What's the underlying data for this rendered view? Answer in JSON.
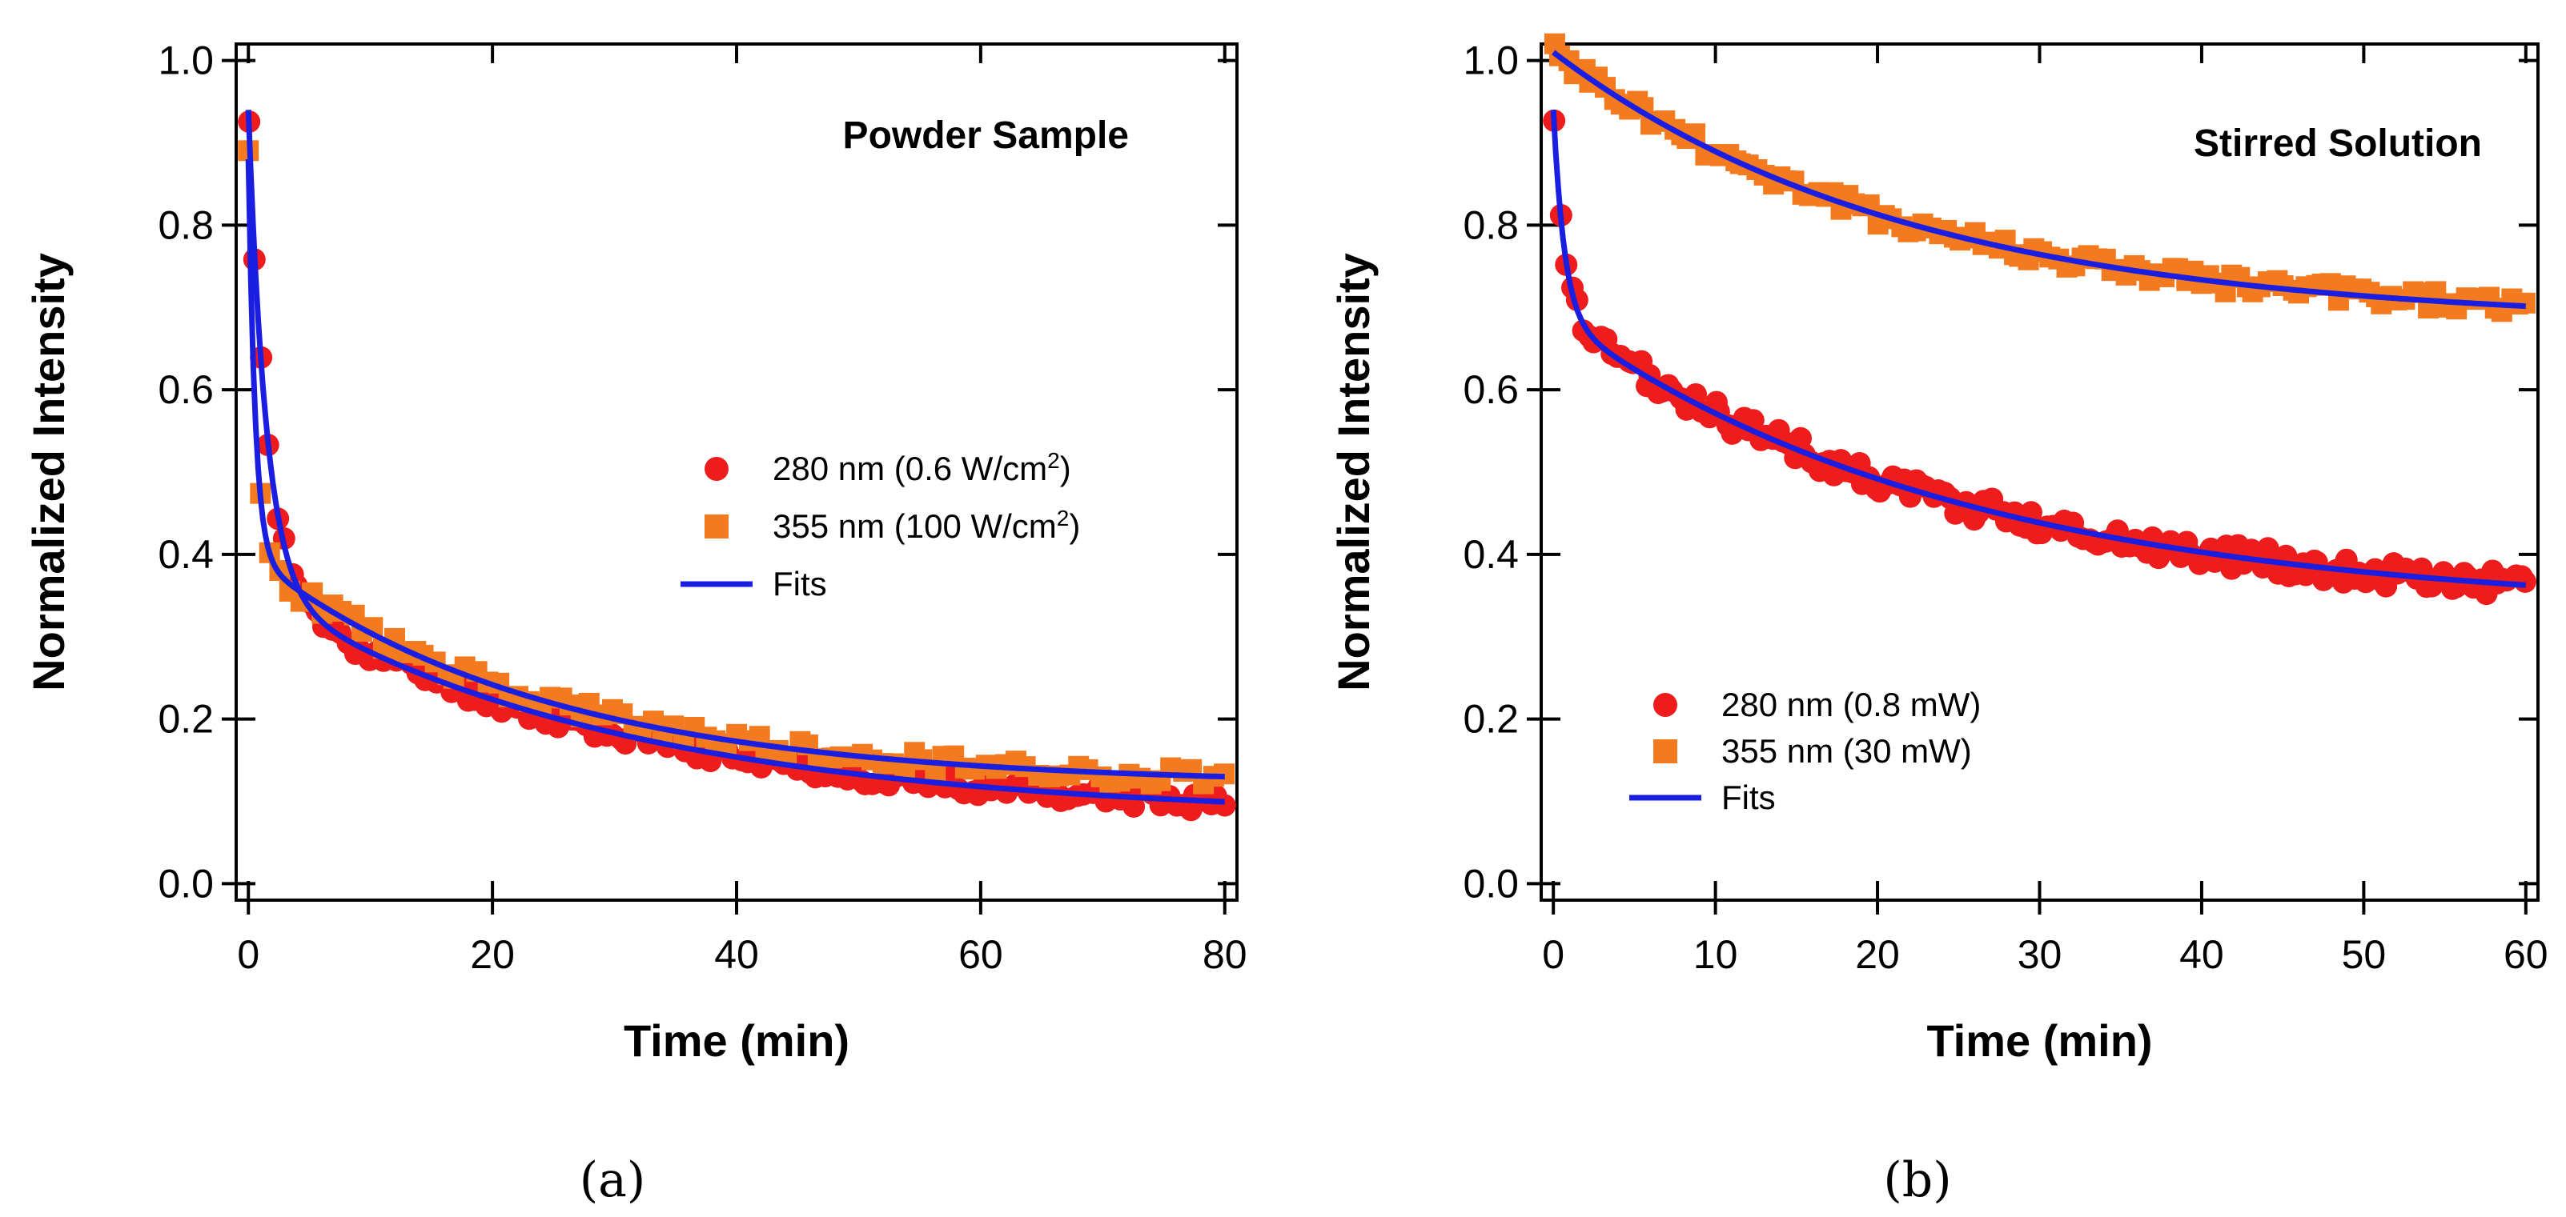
{
  "figure_captions": [
    "(a)",
    "(b)"
  ],
  "chart_data": [
    {
      "type": "scatter",
      "title": "Powder Sample",
      "xlabel": "Time (min)",
      "ylabel": "Normalized Intensity",
      "xlim": [
        -1,
        81
      ],
      "ylim": [
        -0.02,
        1.02
      ],
      "xticks": [
        0,
        20,
        40,
        60,
        80
      ],
      "yticks": [
        0.0,
        0.2,
        0.4,
        0.6,
        0.8,
        1.0
      ],
      "legend_position": "middle-right",
      "series": [
        {
          "name": "280 nm (0.6 W/cm",
          "superscript": "2",
          "name_end": ")",
          "marker": "circle",
          "color": "#ee1c1c",
          "model": {
            "a": 0.58,
            "b": 0.69,
            "c": 0.28,
            "d": 30.0,
            "e": 0.08
          }
        },
        {
          "name": "355 nm (100 W/cm",
          "superscript": "2",
          "name_end": ")",
          "marker": "square",
          "color": "#f47a20",
          "model": {
            "a": 0.48,
            "b": 1.8,
            "c": 0.28,
            "d": 24.0,
            "e": 0.12
          }
        },
        {
          "name": "Fits",
          "marker": "line",
          "color": "#1a1ee0"
        }
      ]
    },
    {
      "type": "scatter",
      "title": "Stirred Solution",
      "xlabel": "Time (min)",
      "ylabel": "Normalized Intensity",
      "xlim": [
        -0.75,
        60.75
      ],
      "ylim": [
        -0.02,
        1.02
      ],
      "xticks": [
        0,
        10,
        20,
        30,
        40,
        50,
        60
      ],
      "yticks": [
        0.0,
        0.2,
        0.4,
        0.6,
        0.8,
        1.0
      ],
      "legend_position": "bottom-left",
      "series": [
        {
          "name": "280 nm (0.8 mW)",
          "marker": "circle",
          "color": "#ee1c1c",
          "model": {
            "a": 0.25,
            "b": 1.5,
            "c": 0.36,
            "d": 25.0,
            "e": 0.33
          }
        },
        {
          "name": "355 nm (30 mW)",
          "marker": "square",
          "color": "#f47a20",
          "model": {
            "a": 0.0,
            "b": 1.0,
            "c": 0.33,
            "d": 22.0,
            "e": 0.68
          }
        },
        {
          "name": "Fits",
          "marker": "line",
          "color": "#1a1ee0"
        }
      ]
    }
  ]
}
